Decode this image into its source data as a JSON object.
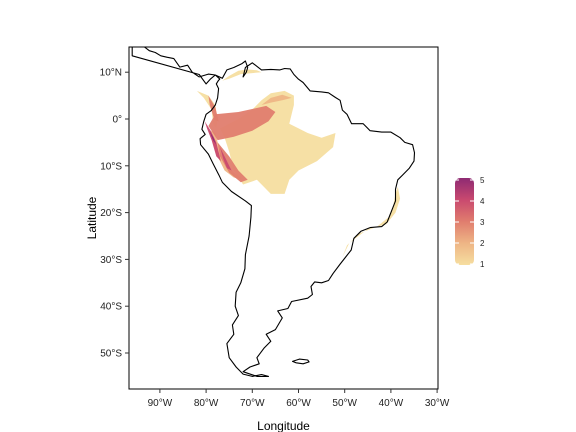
{
  "chart_data": {
    "type": "heatmap",
    "xlabel": "Longitude",
    "ylabel": "Latitude",
    "xlim": [
      -99,
      -27
    ],
    "ylim": [
      -58,
      15
    ],
    "x_ticks": [
      {
        "value": -90,
        "label": "90°W"
      },
      {
        "value": -80,
        "label": "80°W"
      },
      {
        "value": -70,
        "label": "70°W"
      },
      {
        "value": -60,
        "label": "60°W"
      },
      {
        "value": -50,
        "label": "50°W"
      },
      {
        "value": -40,
        "label": "40°W"
      },
      {
        "value": -30,
        "label": "30°W"
      }
    ],
    "y_ticks": [
      {
        "value": 10,
        "label": "10°N"
      },
      {
        "value": 0,
        "label": "0°"
      },
      {
        "value": -10,
        "label": "10°S"
      },
      {
        "value": -20,
        "label": "20°S"
      },
      {
        "value": -30,
        "label": "30°S"
      },
      {
        "value": -40,
        "label": "40°S"
      },
      {
        "value": -50,
        "label": "50°S"
      }
    ],
    "grid": false,
    "colorbar": {
      "min": 1,
      "max": 5,
      "ticks": [
        1,
        2,
        3,
        4,
        5
      ],
      "placement": "right",
      "colors": [
        "#f6dea0",
        "#eeb585",
        "#e07d6e",
        "#c9496f",
        "#8e2a73"
      ]
    },
    "landmass_coords": [
      [
        -77,
        8.5
      ],
      [
        -78,
        9.4
      ],
      [
        -79.5,
        9.6
      ],
      [
        -81.5,
        9
      ],
      [
        -83,
        10
      ],
      [
        -84,
        11.5
      ],
      [
        -85.7,
        11.1
      ],
      [
        -87,
        12.9
      ],
      [
        -88.5,
        13.2
      ],
      [
        -89.8,
        13.5
      ],
      [
        -91,
        14.2
      ],
      [
        -92.3,
        14.6
      ],
      [
        -94,
        15.9
      ],
      [
        -96,
        16
      ],
      [
        -96,
        13.5
      ],
      [
        -81.5,
        9.5
      ],
      [
        -80,
        7.5
      ],
      [
        -79,
        8.6
      ],
      [
        -78,
        9.4
      ],
      [
        -76.5,
        8.7
      ],
      [
        -75.5,
        10.5
      ],
      [
        -74,
        11
      ],
      [
        -72.3,
        11.8
      ],
      [
        -71.5,
        12.4
      ],
      [
        -71,
        11
      ],
      [
        -71.3,
        10
      ],
      [
        -72,
        9
      ],
      [
        -71.5,
        11
      ],
      [
        -70,
        12
      ],
      [
        -68,
        10.5
      ],
      [
        -66,
        10.6
      ],
      [
        -64,
        10.5
      ],
      [
        -63,
        10.8
      ],
      [
        -61.8,
        10.7
      ],
      [
        -61,
        9.5
      ],
      [
        -60,
        8.5
      ],
      [
        -59,
        7.8
      ],
      [
        -57.5,
        6
      ],
      [
        -55,
        5.8
      ],
      [
        -53.5,
        5.6
      ],
      [
        -52,
        4.6
      ],
      [
        -51,
        4
      ],
      [
        -50.5,
        1.9
      ],
      [
        -49.5,
        1
      ],
      [
        -48.5,
        -1
      ],
      [
        -46,
        -1
      ],
      [
        -44.5,
        -2.5
      ],
      [
        -42,
        -2.8
      ],
      [
        -40,
        -2.8
      ],
      [
        -38,
        -4
      ],
      [
        -37,
        -5
      ],
      [
        -35.3,
        -5.5
      ],
      [
        -34.9,
        -7.2
      ],
      [
        -35,
        -9
      ],
      [
        -36,
        -10.5
      ],
      [
        -37.5,
        -12
      ],
      [
        -38.5,
        -13
      ],
      [
        -39,
        -15
      ],
      [
        -39,
        -17.5
      ],
      [
        -39.8,
        -19.5
      ],
      [
        -40.8,
        -22
      ],
      [
        -42,
        -23
      ],
      [
        -44.5,
        -23.2
      ],
      [
        -46.5,
        -24
      ],
      [
        -48,
        -25.5
      ],
      [
        -48.6,
        -28
      ],
      [
        -49.8,
        -29.5
      ],
      [
        -51,
        -31
      ],
      [
        -52.5,
        -33
      ],
      [
        -53.5,
        -34.5
      ],
      [
        -55,
        -35
      ],
      [
        -56.5,
        -34.8
      ],
      [
        -57.3,
        -35.8
      ],
      [
        -57,
        -37.5
      ],
      [
        -58,
        -38.3
      ],
      [
        -61.5,
        -39
      ],
      [
        -62.3,
        -40.5
      ],
      [
        -64.5,
        -41
      ],
      [
        -63.5,
        -42.5
      ],
      [
        -65,
        -45
      ],
      [
        -67,
        -46
      ],
      [
        -66,
        -47.5
      ],
      [
        -67.5,
        -49
      ],
      [
        -69,
        -51
      ],
      [
        -68.5,
        -52.3
      ],
      [
        -70.5,
        -53
      ],
      [
        -72,
        -54
      ],
      [
        -69,
        -55
      ],
      [
        -66.5,
        -55
      ],
      [
        -68,
        -54.6
      ],
      [
        -70,
        -55
      ],
      [
        -72,
        -54.5
      ],
      [
        -73.5,
        -53
      ],
      [
        -75,
        -51
      ],
      [
        -75.5,
        -48
      ],
      [
        -74,
        -46
      ],
      [
        -74.3,
        -44
      ],
      [
        -73,
        -42
      ],
      [
        -73.7,
        -40
      ],
      [
        -73.5,
        -37
      ],
      [
        -72.5,
        -35
      ],
      [
        -71.6,
        -32
      ],
      [
        -71.5,
        -29
      ],
      [
        -70.7,
        -25
      ],
      [
        -70.3,
        -21
      ],
      [
        -70.2,
        -18.5
      ],
      [
        -71.5,
        -17.5
      ],
      [
        -74.5,
        -15.5
      ],
      [
        -76.5,
        -13.5
      ],
      [
        -77.2,
        -12
      ],
      [
        -78.5,
        -9.5
      ],
      [
        -79.5,
        -7.5
      ],
      [
        -81.2,
        -5.5
      ],
      [
        -81.3,
        -4.2
      ],
      [
        -80.2,
        -3.3
      ],
      [
        -80.9,
        -2.2
      ],
      [
        -80.5,
        -0.5
      ],
      [
        -80,
        1
      ],
      [
        -78.9,
        1.8
      ],
      [
        -78,
        3
      ],
      [
        -77.5,
        4.5
      ],
      [
        -77.3,
        6.5
      ],
      [
        -77.8,
        7.5
      ],
      [
        -77.3,
        8.3
      ],
      [
        -77,
        8.5
      ]
    ],
    "falklands_coords": [
      [
        -61.3,
        -51.8
      ],
      [
        -59.8,
        -51.3
      ],
      [
        -58,
        -51.5
      ],
      [
        -57.7,
        -51.9
      ],
      [
        -59,
        -52.3
      ],
      [
        -60.5,
        -52.1
      ],
      [
        -61.3,
        -51.8
      ]
    ],
    "regions": [
      {
        "level": 1,
        "coords": [
          [
            -77,
            -2
          ],
          [
            -73,
            0
          ],
          [
            -70,
            2
          ],
          [
            -68,
            4
          ],
          [
            -66,
            5.5
          ],
          [
            -63,
            6
          ],
          [
            -61,
            5
          ],
          [
            -61,
            3
          ],
          [
            -62,
            -1
          ],
          [
            -58,
            -3
          ],
          [
            -55,
            -4
          ],
          [
            -52,
            -3
          ],
          [
            -52.5,
            -6
          ],
          [
            -56,
            -9
          ],
          [
            -60,
            -11
          ],
          [
            -62,
            -13
          ],
          [
            -63,
            -16
          ],
          [
            -66,
            -16
          ],
          [
            -69,
            -13
          ],
          [
            -72,
            -14
          ],
          [
            -74,
            -11
          ],
          [
            -75,
            -7
          ],
          [
            -76,
            -4
          ]
        ]
      },
      {
        "level": 1,
        "coords": [
          [
            -38.5,
            -14.5
          ],
          [
            -38,
            -17
          ],
          [
            -39,
            -20
          ],
          [
            -41,
            -22.5
          ],
          [
            -45,
            -23.5
          ],
          [
            -49,
            -26.5
          ],
          [
            -50.5,
            -29.5
          ],
          [
            -49.5,
            -27
          ],
          [
            -47,
            -24.5
          ],
          [
            -43,
            -23
          ],
          [
            -40.5,
            -21
          ],
          [
            -39.5,
            -18.5
          ],
          [
            -39,
            -16
          ]
        ]
      },
      {
        "level": 1,
        "coords": [
          [
            -76.5,
            8.2
          ],
          [
            -75,
            9.2
          ],
          [
            -73,
            10.3
          ],
          [
            -71,
            10.6
          ],
          [
            -69,
            10.4
          ],
          [
            -68,
            10
          ],
          [
            -70,
            9.8
          ],
          [
            -72.5,
            9.6
          ],
          [
            -75,
            8.6
          ]
        ]
      },
      {
        "level": 1,
        "coords": [
          [
            -82,
            6
          ],
          [
            -79.5,
            5
          ],
          [
            -78,
            3
          ],
          [
            -77.5,
            0
          ],
          [
            -77.8,
            -2
          ],
          [
            -78.5,
            -1
          ],
          [
            -78.8,
            2
          ],
          [
            -80.5,
            4.5
          ]
        ]
      },
      {
        "level": 2,
        "coords": [
          [
            -79,
            -2.5
          ],
          [
            -78,
            -7
          ],
          [
            -76,
            -11
          ],
          [
            -74,
            -12.5
          ],
          [
            -72,
            -13
          ],
          [
            -74.5,
            -11
          ],
          [
            -77,
            -7
          ],
          [
            -78,
            -3
          ]
        ]
      },
      {
        "level": 2,
        "coords": [
          [
            -68,
            3
          ],
          [
            -66,
            4.5
          ],
          [
            -63.5,
            5.2
          ],
          [
            -61.5,
            4.5
          ],
          [
            -63.5,
            4
          ],
          [
            -66,
            3.5
          ]
        ]
      },
      {
        "level": 3,
        "coords": [
          [
            -79.5,
            -1.5
          ],
          [
            -78,
            1
          ],
          [
            -73,
            1.5
          ],
          [
            -67,
            2.8
          ],
          [
            -65,
            1.5
          ],
          [
            -66.5,
            -0.5
          ],
          [
            -70,
            -2.5
          ],
          [
            -74,
            -3.8
          ],
          [
            -77.5,
            -4.5
          ]
        ]
      },
      {
        "level": 3,
        "coords": [
          [
            -77.5,
            -5
          ],
          [
            -75,
            -8
          ],
          [
            -73,
            -11
          ],
          [
            -71,
            -13
          ],
          [
            -72.5,
            -13.5
          ],
          [
            -75,
            -11.5
          ],
          [
            -77,
            -8
          ]
        ]
      },
      {
        "level": 3,
        "coords": [
          [
            -79.5,
            5
          ],
          [
            -78,
            2.5
          ],
          [
            -77.3,
            -0.5
          ],
          [
            -78.2,
            -0.2
          ],
          [
            -79.2,
            3
          ]
        ]
      },
      {
        "level": 4,
        "coords": [
          [
            -80.3,
            -0.5
          ],
          [
            -79,
            -2.5
          ],
          [
            -77.8,
            -5
          ],
          [
            -76.8,
            -9
          ],
          [
            -77.8,
            -8
          ],
          [
            -78.8,
            -4.5
          ],
          [
            -79.8,
            -2
          ]
        ]
      },
      {
        "level": 4,
        "coords": [
          [
            -77,
            -6
          ],
          [
            -75.5,
            -9
          ],
          [
            -74.5,
            -11
          ],
          [
            -75.5,
            -10.5
          ],
          [
            -76.3,
            -8.5
          ]
        ]
      },
      {
        "level": 5,
        "coords": [
          [
            -79.3,
            -2.5
          ],
          [
            -78.5,
            -4.5
          ],
          [
            -77.8,
            -5.5
          ],
          [
            -78.4,
            -4
          ],
          [
            -79,
            -3
          ]
        ]
      }
    ]
  }
}
